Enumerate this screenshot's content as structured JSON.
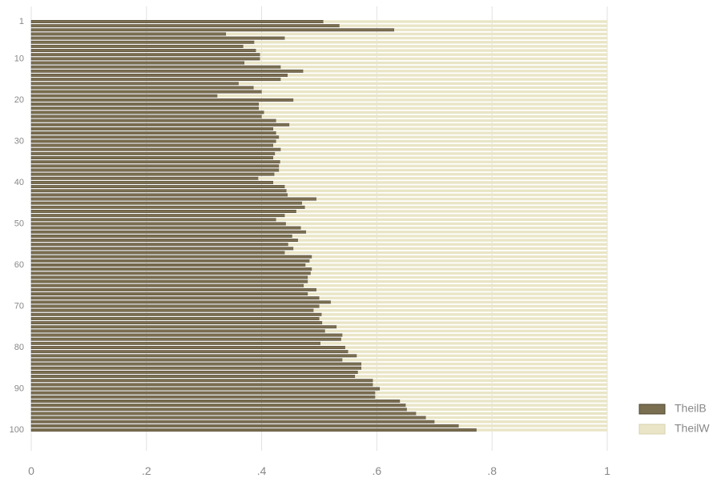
{
  "chart_data": {
    "type": "stacked-barh",
    "categories": [
      "1",
      null,
      null,
      null,
      null,
      null,
      null,
      null,
      null,
      "10",
      null,
      null,
      null,
      null,
      null,
      null,
      null,
      null,
      null,
      "20",
      null,
      null,
      null,
      null,
      null,
      null,
      null,
      null,
      null,
      "30",
      null,
      null,
      null,
      null,
      null,
      null,
      null,
      null,
      null,
      "40",
      null,
      null,
      null,
      null,
      null,
      null,
      null,
      null,
      null,
      "50",
      null,
      null,
      null,
      null,
      null,
      null,
      null,
      null,
      null,
      "60",
      null,
      null,
      null,
      null,
      null,
      null,
      null,
      null,
      null,
      "70",
      null,
      null,
      null,
      null,
      null,
      null,
      null,
      null,
      null,
      "80",
      null,
      null,
      null,
      null,
      null,
      null,
      null,
      null,
      null,
      "90",
      null,
      null,
      null,
      null,
      null,
      null,
      null,
      null,
      null,
      "100"
    ],
    "series": [
      {
        "name": "TheilB",
        "color": "#7b6f51",
        "values": [
          0.507,
          0.535,
          0.63,
          0.338,
          0.44,
          0.387,
          0.368,
          0.39,
          0.397,
          0.397,
          0.37,
          0.433,
          0.472,
          0.445,
          0.433,
          0.36,
          0.386,
          0.4,
          0.323,
          0.455,
          0.395,
          0.395,
          0.404,
          0.4,
          0.425,
          0.448,
          0.42,
          0.425,
          0.43,
          0.425,
          0.42,
          0.433,
          0.423,
          0.42,
          0.432,
          0.43,
          0.43,
          0.422,
          0.394,
          0.42,
          0.44,
          0.443,
          0.445,
          0.495,
          0.47,
          0.475,
          0.46,
          0.44,
          0.425,
          0.442,
          0.468,
          0.477,
          0.453,
          0.463,
          0.446,
          0.455,
          0.44,
          0.487,
          0.483,
          0.476,
          0.487,
          0.485,
          0.48,
          0.48,
          0.473,
          0.495,
          0.48,
          0.5,
          0.52,
          0.5,
          0.49,
          0.504,
          0.5,
          0.505,
          0.53,
          0.51,
          0.54,
          0.538,
          0.502,
          0.545,
          0.55,
          0.565,
          0.54,
          0.573,
          0.573,
          0.567,
          0.562,
          0.593,
          0.593,
          0.605,
          0.597,
          0.597,
          0.64,
          0.65,
          0.652,
          0.668,
          0.685,
          0.7,
          0.742,
          0.773
        ]
      },
      {
        "name": "TheilW",
        "color": "#e9e5c6",
        "values": [
          0.493,
          0.465,
          0.37,
          0.662,
          0.56,
          0.613,
          0.632,
          0.61,
          0.603,
          0.603,
          0.63,
          0.567,
          0.528,
          0.555,
          0.567,
          0.64,
          0.614,
          0.6,
          0.677,
          0.545,
          0.605,
          0.605,
          0.596,
          0.6,
          0.575,
          0.552,
          0.58,
          0.575,
          0.57,
          0.575,
          0.58,
          0.567,
          0.577,
          0.58,
          0.568,
          0.57,
          0.57,
          0.578,
          0.606,
          0.58,
          0.56,
          0.557,
          0.555,
          0.505,
          0.53,
          0.525,
          0.54,
          0.56,
          0.575,
          0.558,
          0.532,
          0.523,
          0.547,
          0.537,
          0.554,
          0.545,
          0.56,
          0.513,
          0.517,
          0.524,
          0.513,
          0.515,
          0.52,
          0.52,
          0.527,
          0.505,
          0.52,
          0.5,
          0.48,
          0.5,
          0.51,
          0.496,
          0.5,
          0.495,
          0.47,
          0.49,
          0.46,
          0.462,
          0.498,
          0.455,
          0.45,
          0.435,
          0.46,
          0.427,
          0.427,
          0.433,
          0.438,
          0.407,
          0.407,
          0.395,
          0.403,
          0.403,
          0.36,
          0.35,
          0.348,
          0.332,
          0.315,
          0.3,
          0.258,
          0.227
        ]
      }
    ],
    "xlim": [
      0,
      1
    ],
    "xticks": [
      0,
      {
        "value": 0.2,
        "label": ".2"
      },
      {
        "value": 0.4,
        "label": ".4"
      },
      {
        "value": 0.6,
        "label": ".6"
      },
      {
        "value": 0.8,
        "label": ".8"
      },
      1
    ],
    "grid": true,
    "legend": "right"
  }
}
